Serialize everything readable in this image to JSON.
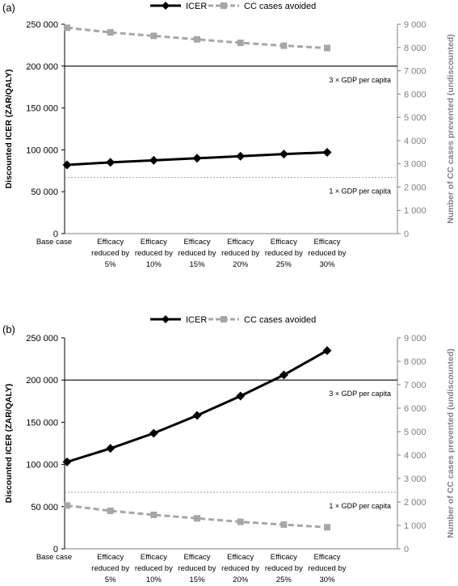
{
  "chart_data": [
    {
      "type": "line",
      "panel_label": "(a)",
      "categories": [
        "Base case",
        "Efficacy reduced by 5%",
        "Efficacy reduced by 10%",
        "Efficacy reduced by 15%",
        "Efficacy reduced by 20%",
        "Efficacy reduced by 25%",
        "Efficacy reduced by 30%"
      ],
      "category_lines": [
        [
          "Base case"
        ],
        [
          "Efficacy",
          "reduced by",
          "5%"
        ],
        [
          "Efficacy",
          "reduced by",
          "10%"
        ],
        [
          "Efficacy",
          "reduced by",
          "15%"
        ],
        [
          "Efficacy",
          "reduced by",
          "20%"
        ],
        [
          "Efficacy",
          "reduced by",
          "25%"
        ],
        [
          "Efficacy",
          "reduced by",
          "30%"
        ]
      ],
      "series": [
        {
          "name": "ICER",
          "axis": "left",
          "color": "#000000",
          "marker": "diamond",
          "values": [
            82000,
            85000,
            87500,
            90000,
            92500,
            95000,
            97000
          ]
        },
        {
          "name": "CC cases avoided",
          "axis": "right",
          "color": "#a6a6a6",
          "marker": "square",
          "dashed": true,
          "values": [
            8850,
            8650,
            8500,
            8350,
            8200,
            8080,
            7980
          ]
        }
      ],
      "ylabel": "Discounted ICER (ZAR/QALY)",
      "y2label": "Number of CC cases  prevented (undiscounted)",
      "ylim": [
        0,
        250000
      ],
      "y2lim": [
        0,
        9000
      ],
      "yticks": [
        "0",
        "50 000",
        "100 000",
        "150 000",
        "200 000",
        "250 000"
      ],
      "y2ticks": [
        "0",
        "1 000",
        "2 000",
        "3 000",
        "4 000",
        "5 000",
        "6 000",
        "7 000",
        "8 000",
        "9 000"
      ],
      "reference_lines": [
        {
          "label": "3 × GDP per capita",
          "value": 200000,
          "style": "solid"
        },
        {
          "label": "1 × GDP per capita",
          "value": 67000,
          "style": "dashed"
        }
      ],
      "legend_position": "top-center"
    },
    {
      "type": "line",
      "panel_label": "(b)",
      "categories": [
        "Base case",
        "Efficacy reduced by 5%",
        "Efficacy reduced by 10%",
        "Efficacy reduced by 15%",
        "Efficacy reduced by 20%",
        "Efficacy reduced by 25%",
        "Efficacy reduced by 30%"
      ],
      "category_lines": [
        [
          "Base case"
        ],
        [
          "Efficacy",
          "reduced by",
          "5%"
        ],
        [
          "Efficacy",
          "reduced by",
          "10%"
        ],
        [
          "Efficacy",
          "reduced by",
          "15%"
        ],
        [
          "Efficacy",
          "reduced by",
          "20%"
        ],
        [
          "Efficacy",
          "reduced by",
          "25%"
        ],
        [
          "Efficacy",
          "reduced by",
          "30%"
        ]
      ],
      "series": [
        {
          "name": "ICER",
          "axis": "left",
          "color": "#000000",
          "marker": "diamond",
          "values": [
            103000,
            119000,
            137000,
            158000,
            181000,
            206000,
            235000
          ]
        },
        {
          "name": "CC cases avoided",
          "axis": "right",
          "color": "#a6a6a6",
          "marker": "square",
          "dashed": true,
          "values": [
            1850,
            1620,
            1450,
            1300,
            1150,
            1030,
            920
          ]
        }
      ],
      "ylabel": "Discounted ICER (ZAR/QALY)",
      "y2label": "Number of CC cases  prevented (undiscounted)",
      "ylim": [
        0,
        250000
      ],
      "y2lim": [
        0,
        9000
      ],
      "yticks": [
        "0",
        "50 000",
        "100 000",
        "150 000",
        "200 000",
        "250 000"
      ],
      "y2ticks": [
        "0",
        "1 000",
        "2 000",
        "3 000",
        "4 000",
        "5 000",
        "6 000",
        "7 000",
        "8 000",
        "9 000"
      ],
      "reference_lines": [
        {
          "label": "3 × GDP per capita",
          "value": 200000,
          "style": "solid"
        },
        {
          "label": "1 × GDP per capita",
          "value": 67000,
          "style": "dashed"
        }
      ],
      "legend_position": "top-center"
    }
  ]
}
